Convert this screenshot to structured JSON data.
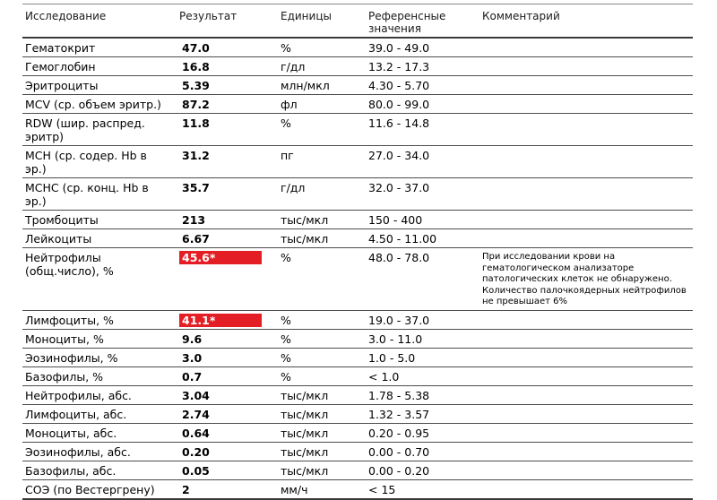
{
  "report": {
    "columns": [
      "Исследование",
      "Результат",
      "Единицы",
      "Референсные значения",
      "Комментарий"
    ],
    "colors": {
      "out_of_range_bg": "#e31e24",
      "out_of_range_text": "#ffffff"
    },
    "rows": [
      {
        "name": "Гематокрит",
        "result": "47.0",
        "units": "%",
        "reference": "39.0 - 49.0",
        "comment": "",
        "out_of_range": false
      },
      {
        "name": "Гемоглобин",
        "result": "16.8",
        "units": "г/дл",
        "reference": "13.2 - 17.3",
        "comment": "",
        "out_of_range": false
      },
      {
        "name": "Эритроциты",
        "result": "5.39",
        "units": "млн/мкл",
        "reference": "4.30 - 5.70",
        "comment": "",
        "out_of_range": false
      },
      {
        "name": "MCV (ср. объем эритр.)",
        "result": "87.2",
        "units": "фл",
        "reference": "80.0 - 99.0",
        "comment": "",
        "out_of_range": false
      },
      {
        "name": "RDW (шир. распред. эритр)",
        "result": "11.8",
        "units": "%",
        "reference": "11.6 - 14.8",
        "comment": "",
        "out_of_range": false
      },
      {
        "name": "MCH (ср. содер. Hb в эр.)",
        "result": "31.2",
        "units": "пг",
        "reference": "27.0 - 34.0",
        "comment": "",
        "out_of_range": false
      },
      {
        "name": "MCHC (ср. конц. Hb в эр.)",
        "result": "35.7",
        "units": "г/дл",
        "reference": "32.0 - 37.0",
        "comment": "",
        "out_of_range": false
      },
      {
        "name": "Тромбоциты",
        "result": "213",
        "units": "тыс/мкл",
        "reference": "150 - 400",
        "comment": "",
        "out_of_range": false
      },
      {
        "name": "Лейкоциты",
        "result": "6.67",
        "units": "тыс/мкл",
        "reference": "4.50 - 11.00",
        "comment": "",
        "out_of_range": false
      },
      {
        "name": "Нейтрофилы (общ.число), %",
        "result": "45.6*",
        "units": "%",
        "reference": "48.0 - 78.0",
        "comment": "При исследовании крови на гематологическом анализаторе патологических клеток не обнаружено. Количество палочкоядерных нейтрофилов не превышает 6%",
        "out_of_range": true
      },
      {
        "name": "Лимфоциты, %",
        "result": "41.1*",
        "units": "%",
        "reference": "19.0 - 37.0",
        "comment": "",
        "out_of_range": true
      },
      {
        "name": "Моноциты, %",
        "result": "9.6",
        "units": "%",
        "reference": "3.0 - 11.0",
        "comment": "",
        "out_of_range": false
      },
      {
        "name": "Эозинофилы, %",
        "result": "3.0",
        "units": "%",
        "reference": "1.0 - 5.0",
        "comment": "",
        "out_of_range": false
      },
      {
        "name": "Базофилы, %",
        "result": "0.7",
        "units": "%",
        "reference": "< 1.0",
        "comment": "",
        "out_of_range": false
      },
      {
        "name": "Нейтрофилы, абс.",
        "result": "3.04",
        "units": "тыс/мкл",
        "reference": "1.78 - 5.38",
        "comment": "",
        "out_of_range": false
      },
      {
        "name": "Лимфоциты, абс.",
        "result": "2.74",
        "units": "тыс/мкл",
        "reference": "1.32 - 3.57",
        "comment": "",
        "out_of_range": false
      },
      {
        "name": "Моноциты, абс.",
        "result": "0.64",
        "units": "тыс/мкл",
        "reference": "0.20 - 0.95",
        "comment": "",
        "out_of_range": false
      },
      {
        "name": "Эозинофилы, абс.",
        "result": "0.20",
        "units": "тыс/мкл",
        "reference": "0.00 - 0.70",
        "comment": "",
        "out_of_range": false
      },
      {
        "name": "Базофилы, абс.",
        "result": "0.05",
        "units": "тыс/мкл",
        "reference": "0.00 - 0.20",
        "comment": "",
        "out_of_range": false
      },
      {
        "name": "СОЭ (по Вестергрену)",
        "result": "2",
        "units": "мм/ч",
        "reference": "< 15",
        "comment": "",
        "out_of_range": false
      }
    ]
  }
}
